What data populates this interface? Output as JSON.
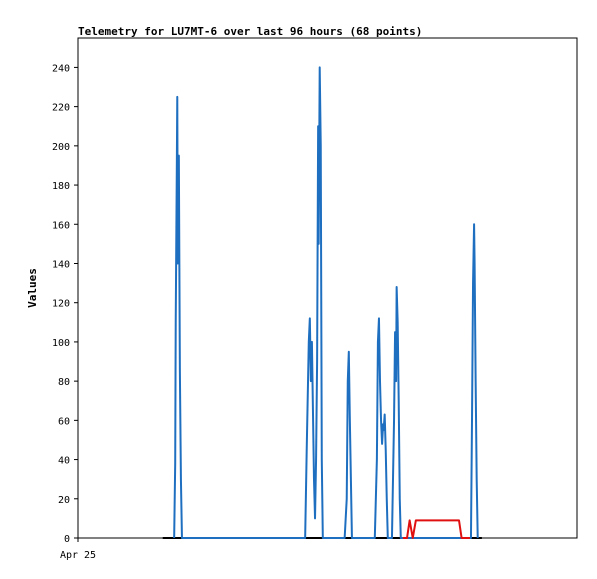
{
  "chart_data": {
    "type": "line",
    "title": "Telemetry for LU7MT-6 over last 96 hours (68 points)",
    "ylabel": "Values",
    "xlim": [
      0,
      96
    ],
    "xticks": [
      {
        "value": 0,
        "label": "Apr 25"
      }
    ],
    "ylim": [
      0,
      255
    ],
    "yticks": [
      0,
      20,
      40,
      60,
      80,
      100,
      120,
      140,
      160,
      180,
      200,
      220,
      240
    ],
    "grid": false,
    "series": [
      {
        "color": "#000000",
        "x": [
          16.3,
          77.7
        ],
        "values": [
          0,
          0
        ]
      },
      {
        "color": "#1f6fc0",
        "x": [
          18.5,
          18.7,
          18.8,
          19.0,
          19.1,
          19.2,
          19.4,
          19.6,
          19.8,
          20.0,
          43.7,
          44.0,
          44.4,
          44.6,
          44.8,
          45.0,
          45.4,
          45.6,
          45.8,
          46.0,
          46.2,
          46.3,
          46.5,
          46.7,
          46.9,
          47.1,
          51.3,
          51.7,
          51.9,
          52.1,
          52.3,
          52.5,
          52.7,
          57.1,
          57.5,
          57.7,
          57.9,
          58.1,
          58.3,
          58.5,
          58.7,
          58.8,
          59.0,
          59.2,
          59.4,
          59.6,
          60.4,
          60.8,
          61.0,
          61.2,
          61.3,
          61.5,
          61.7,
          61.9,
          62.1,
          75.6,
          75.8,
          76.0,
          76.2,
          76.3,
          76.5,
          76.7,
          76.9
        ],
        "values": [
          0,
          38,
          110,
          185,
          225,
          140,
          195,
          85,
          30,
          0,
          0,
          45,
          100,
          112,
          80,
          100,
          30,
          10,
          40,
          90,
          210,
          150,
          240,
          200,
          40,
          0,
          0,
          20,
          80,
          95,
          60,
          30,
          0,
          0,
          40,
          100,
          112,
          80,
          60,
          48,
          58,
          55,
          63,
          45,
          20,
          0,
          0,
          60,
          105,
          80,
          128,
          110,
          70,
          20,
          0,
          0,
          60,
          130,
          160,
          140,
          80,
          30,
          0
        ]
      },
      {
        "color": "#e01010",
        "x": [
          62.5,
          63.3,
          63.8,
          64.4,
          65.0,
          73.3,
          73.8,
          75.4
        ],
        "values": [
          0,
          0,
          9,
          0,
          9,
          9,
          0,
          0
        ]
      }
    ]
  }
}
